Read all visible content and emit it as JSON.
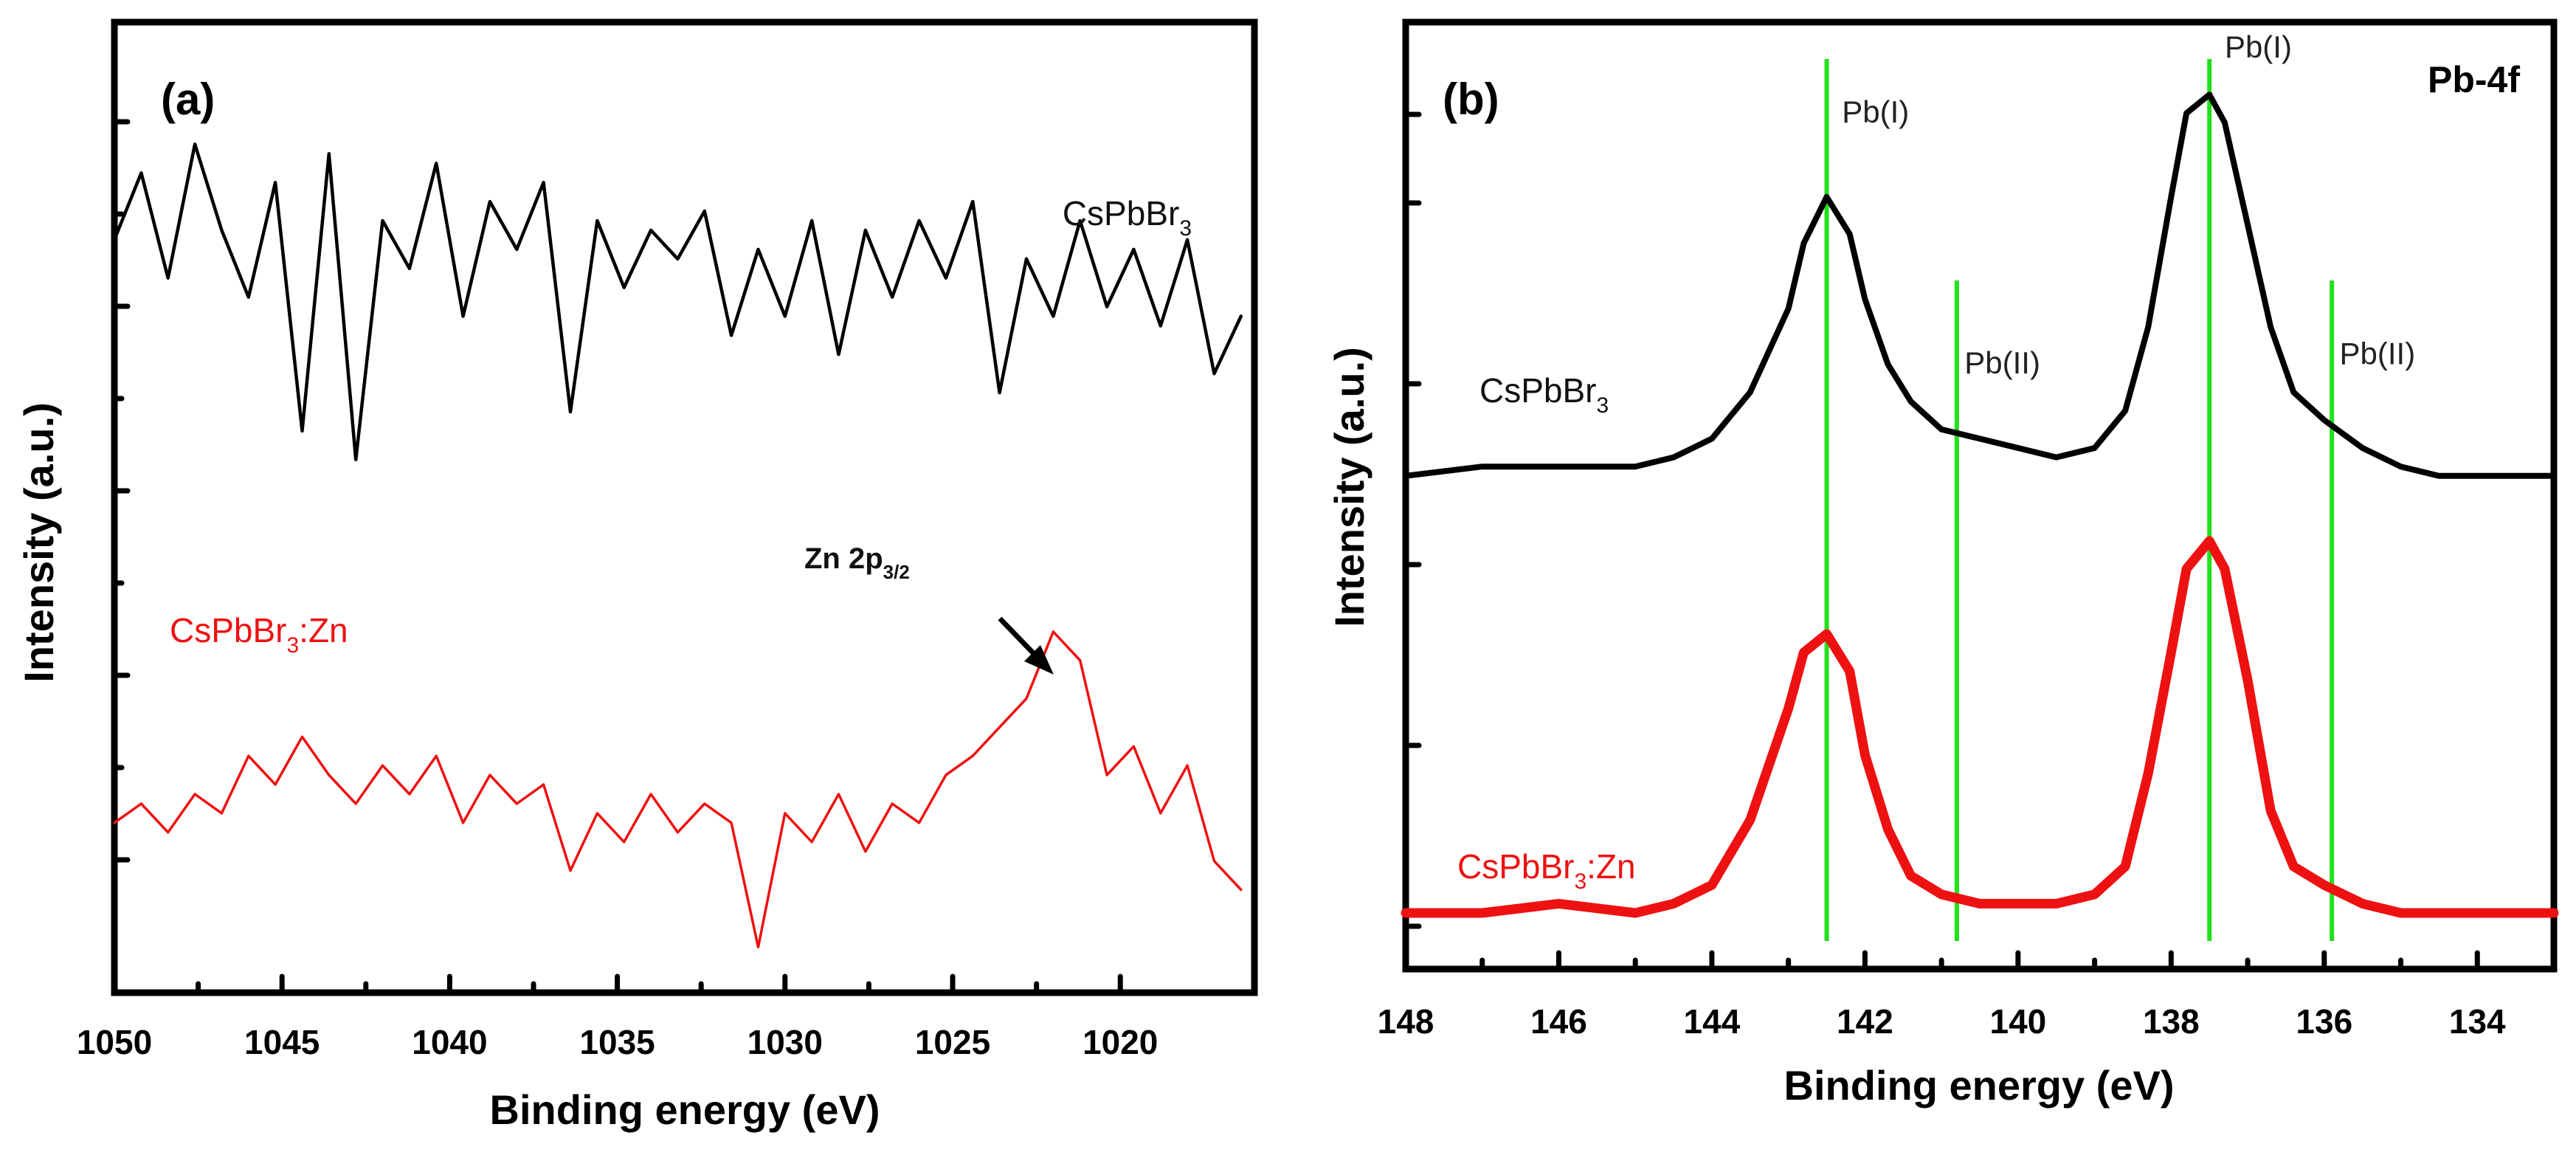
{
  "chart_data": [
    {
      "panel": "(a)",
      "type": "line",
      "xlabel": "Binding energy (eV)",
      "ylabel": "Intensity (a.u.)",
      "xlim": [
        1050,
        1016
      ],
      "ylim": [
        0,
        1
      ],
      "x_ticks": [
        1050,
        1045,
        1040,
        1035,
        1030,
        1025,
        1020
      ],
      "grid": false,
      "annotation": {
        "main": "Zn 2p",
        "sub": "3/2",
        "x": 1021.8,
        "y": 0.36
      },
      "series": [
        {
          "name": "CsPbBr3",
          "label_main": "CsPbBr",
          "label_sub": "3",
          "label_suffix": "",
          "color": "#000000",
          "label_color": "#111111",
          "x": [
            1050,
            1049.2,
            1048.4,
            1047.6,
            1046.8,
            1046,
            1045.2,
            1044.4,
            1043.6,
            1042.8,
            1042,
            1041.2,
            1040.4,
            1039.6,
            1038.8,
            1038,
            1037.2,
            1036.4,
            1035.6,
            1034.8,
            1034,
            1033.2,
            1032.4,
            1031.6,
            1030.8,
            1030,
            1029.2,
            1028.4,
            1027.6,
            1026.8,
            1026,
            1025.2,
            1024.4,
            1023.6,
            1022.8,
            1022,
            1021.2,
            1020.4,
            1019.6,
            1018.8,
            1018,
            1017.2,
            1016.4
          ],
          "y": [
            0.78,
            0.85,
            0.74,
            0.88,
            0.79,
            0.72,
            0.84,
            0.58,
            0.87,
            0.55,
            0.8,
            0.75,
            0.86,
            0.7,
            0.82,
            0.77,
            0.84,
            0.6,
            0.8,
            0.73,
            0.79,
            0.76,
            0.81,
            0.68,
            0.77,
            0.7,
            0.8,
            0.66,
            0.79,
            0.72,
            0.8,
            0.74,
            0.82,
            0.62,
            0.76,
            0.7,
            0.8,
            0.71,
            0.77,
            0.69,
            0.78,
            0.64,
            0.7
          ],
          "line_width": 4.5
        },
        {
          "name": "CsPbBr3:Zn",
          "label_main": "CsPbBr",
          "label_sub": "3",
          "label_suffix": ":Zn",
          "color": "#ee1111",
          "label_color": "#ee1111",
          "x": [
            1050,
            1049.2,
            1048.4,
            1047.6,
            1046.8,
            1046,
            1045.2,
            1044.4,
            1043.6,
            1042.8,
            1042,
            1041.2,
            1040.4,
            1039.6,
            1038.8,
            1038,
            1037.2,
            1036.4,
            1035.6,
            1034.8,
            1034,
            1033.2,
            1032.4,
            1031.6,
            1030.8,
            1030,
            1029.2,
            1028.4,
            1027.6,
            1026.8,
            1026,
            1025.2,
            1024.4,
            1023.6,
            1022.8,
            1022,
            1021.2,
            1020.4,
            1019.6,
            1018.8,
            1018,
            1017.2,
            1016.4
          ],
          "y": [
            0.17,
            0.19,
            0.16,
            0.2,
            0.18,
            0.24,
            0.21,
            0.26,
            0.22,
            0.19,
            0.23,
            0.2,
            0.24,
            0.17,
            0.22,
            0.19,
            0.21,
            0.12,
            0.18,
            0.15,
            0.2,
            0.16,
            0.19,
            0.17,
            0.04,
            0.18,
            0.15,
            0.2,
            0.14,
            0.19,
            0.17,
            0.22,
            0.24,
            0.27,
            0.3,
            0.37,
            0.34,
            0.22,
            0.25,
            0.18,
            0.23,
            0.13,
            0.1
          ],
          "line_width": 3.5
        }
      ]
    },
    {
      "panel": "(b)",
      "type": "line",
      "corner_label": "Pb-4f",
      "xlabel": "Binding energy (eV)",
      "ylabel": "Intensity (a.u.)",
      "xlim": [
        148,
        133
      ],
      "ylim": [
        0,
        1
      ],
      "x_ticks": [
        148,
        146,
        144,
        142,
        140,
        138,
        136,
        134
      ],
      "grid": false,
      "reference_lines": [
        {
          "label": "Pb(I)",
          "x": 142.5,
          "label_x": 142.3,
          "label_y": 0.9
        },
        {
          "label": "Pb(II)",
          "x": 140.8,
          "label_x": 140.7,
          "label_y": 0.63
        },
        {
          "label": "Pb(I)",
          "x": 137.5,
          "label_x": 137.3,
          "label_y": 0.97
        },
        {
          "label": "Pb(II)",
          "x": 135.9,
          "label_x": 135.8,
          "label_y": 0.64
        }
      ],
      "series": [
        {
          "name": "CsPbBr3",
          "label_main": "CsPbBr",
          "label_sub": "3",
          "label_suffix": "",
          "color": "#000000",
          "label_color": "#111111",
          "x": [
            148,
            147,
            146,
            145,
            144.5,
            144,
            143.5,
            143,
            142.8,
            142.5,
            142.2,
            142,
            141.7,
            141.4,
            141,
            140.5,
            140,
            139.5,
            139,
            138.6,
            138.3,
            138,
            137.8,
            137.5,
            137.3,
            137,
            136.7,
            136.4,
            136,
            135.5,
            135,
            134.5,
            134,
            133.5,
            133
          ],
          "y": [
            0.52,
            0.53,
            0.53,
            0.53,
            0.54,
            0.56,
            0.61,
            0.7,
            0.77,
            0.82,
            0.78,
            0.71,
            0.64,
            0.6,
            0.57,
            0.56,
            0.55,
            0.54,
            0.55,
            0.59,
            0.68,
            0.82,
            0.91,
            0.93,
            0.9,
            0.79,
            0.68,
            0.61,
            0.58,
            0.55,
            0.53,
            0.52,
            0.52,
            0.52,
            0.52
          ],
          "line_width": 8
        },
        {
          "name": "CsPbBr3:Zn",
          "label_main": "CsPbBr",
          "label_sub": "3",
          "label_suffix": ":Zn",
          "color": "#ee1111",
          "label_color": "#ee1111",
          "x": [
            148,
            147,
            146,
            145,
            144.5,
            144,
            143.5,
            143,
            142.8,
            142.5,
            142.2,
            142,
            141.7,
            141.4,
            141,
            140.5,
            140,
            139.5,
            139,
            138.6,
            138.3,
            138,
            137.8,
            137.5,
            137.3,
            137,
            136.7,
            136.4,
            136,
            135.5,
            135,
            134.5,
            134,
            133.5,
            133
          ],
          "y": [
            0.05,
            0.05,
            0.06,
            0.05,
            0.06,
            0.08,
            0.15,
            0.27,
            0.33,
            0.35,
            0.31,
            0.22,
            0.14,
            0.09,
            0.07,
            0.06,
            0.06,
            0.06,
            0.07,
            0.1,
            0.2,
            0.33,
            0.42,
            0.45,
            0.42,
            0.3,
            0.16,
            0.1,
            0.08,
            0.06,
            0.05,
            0.05,
            0.05,
            0.05,
            0.05
          ],
          "line_width": 13
        }
      ]
    }
  ]
}
